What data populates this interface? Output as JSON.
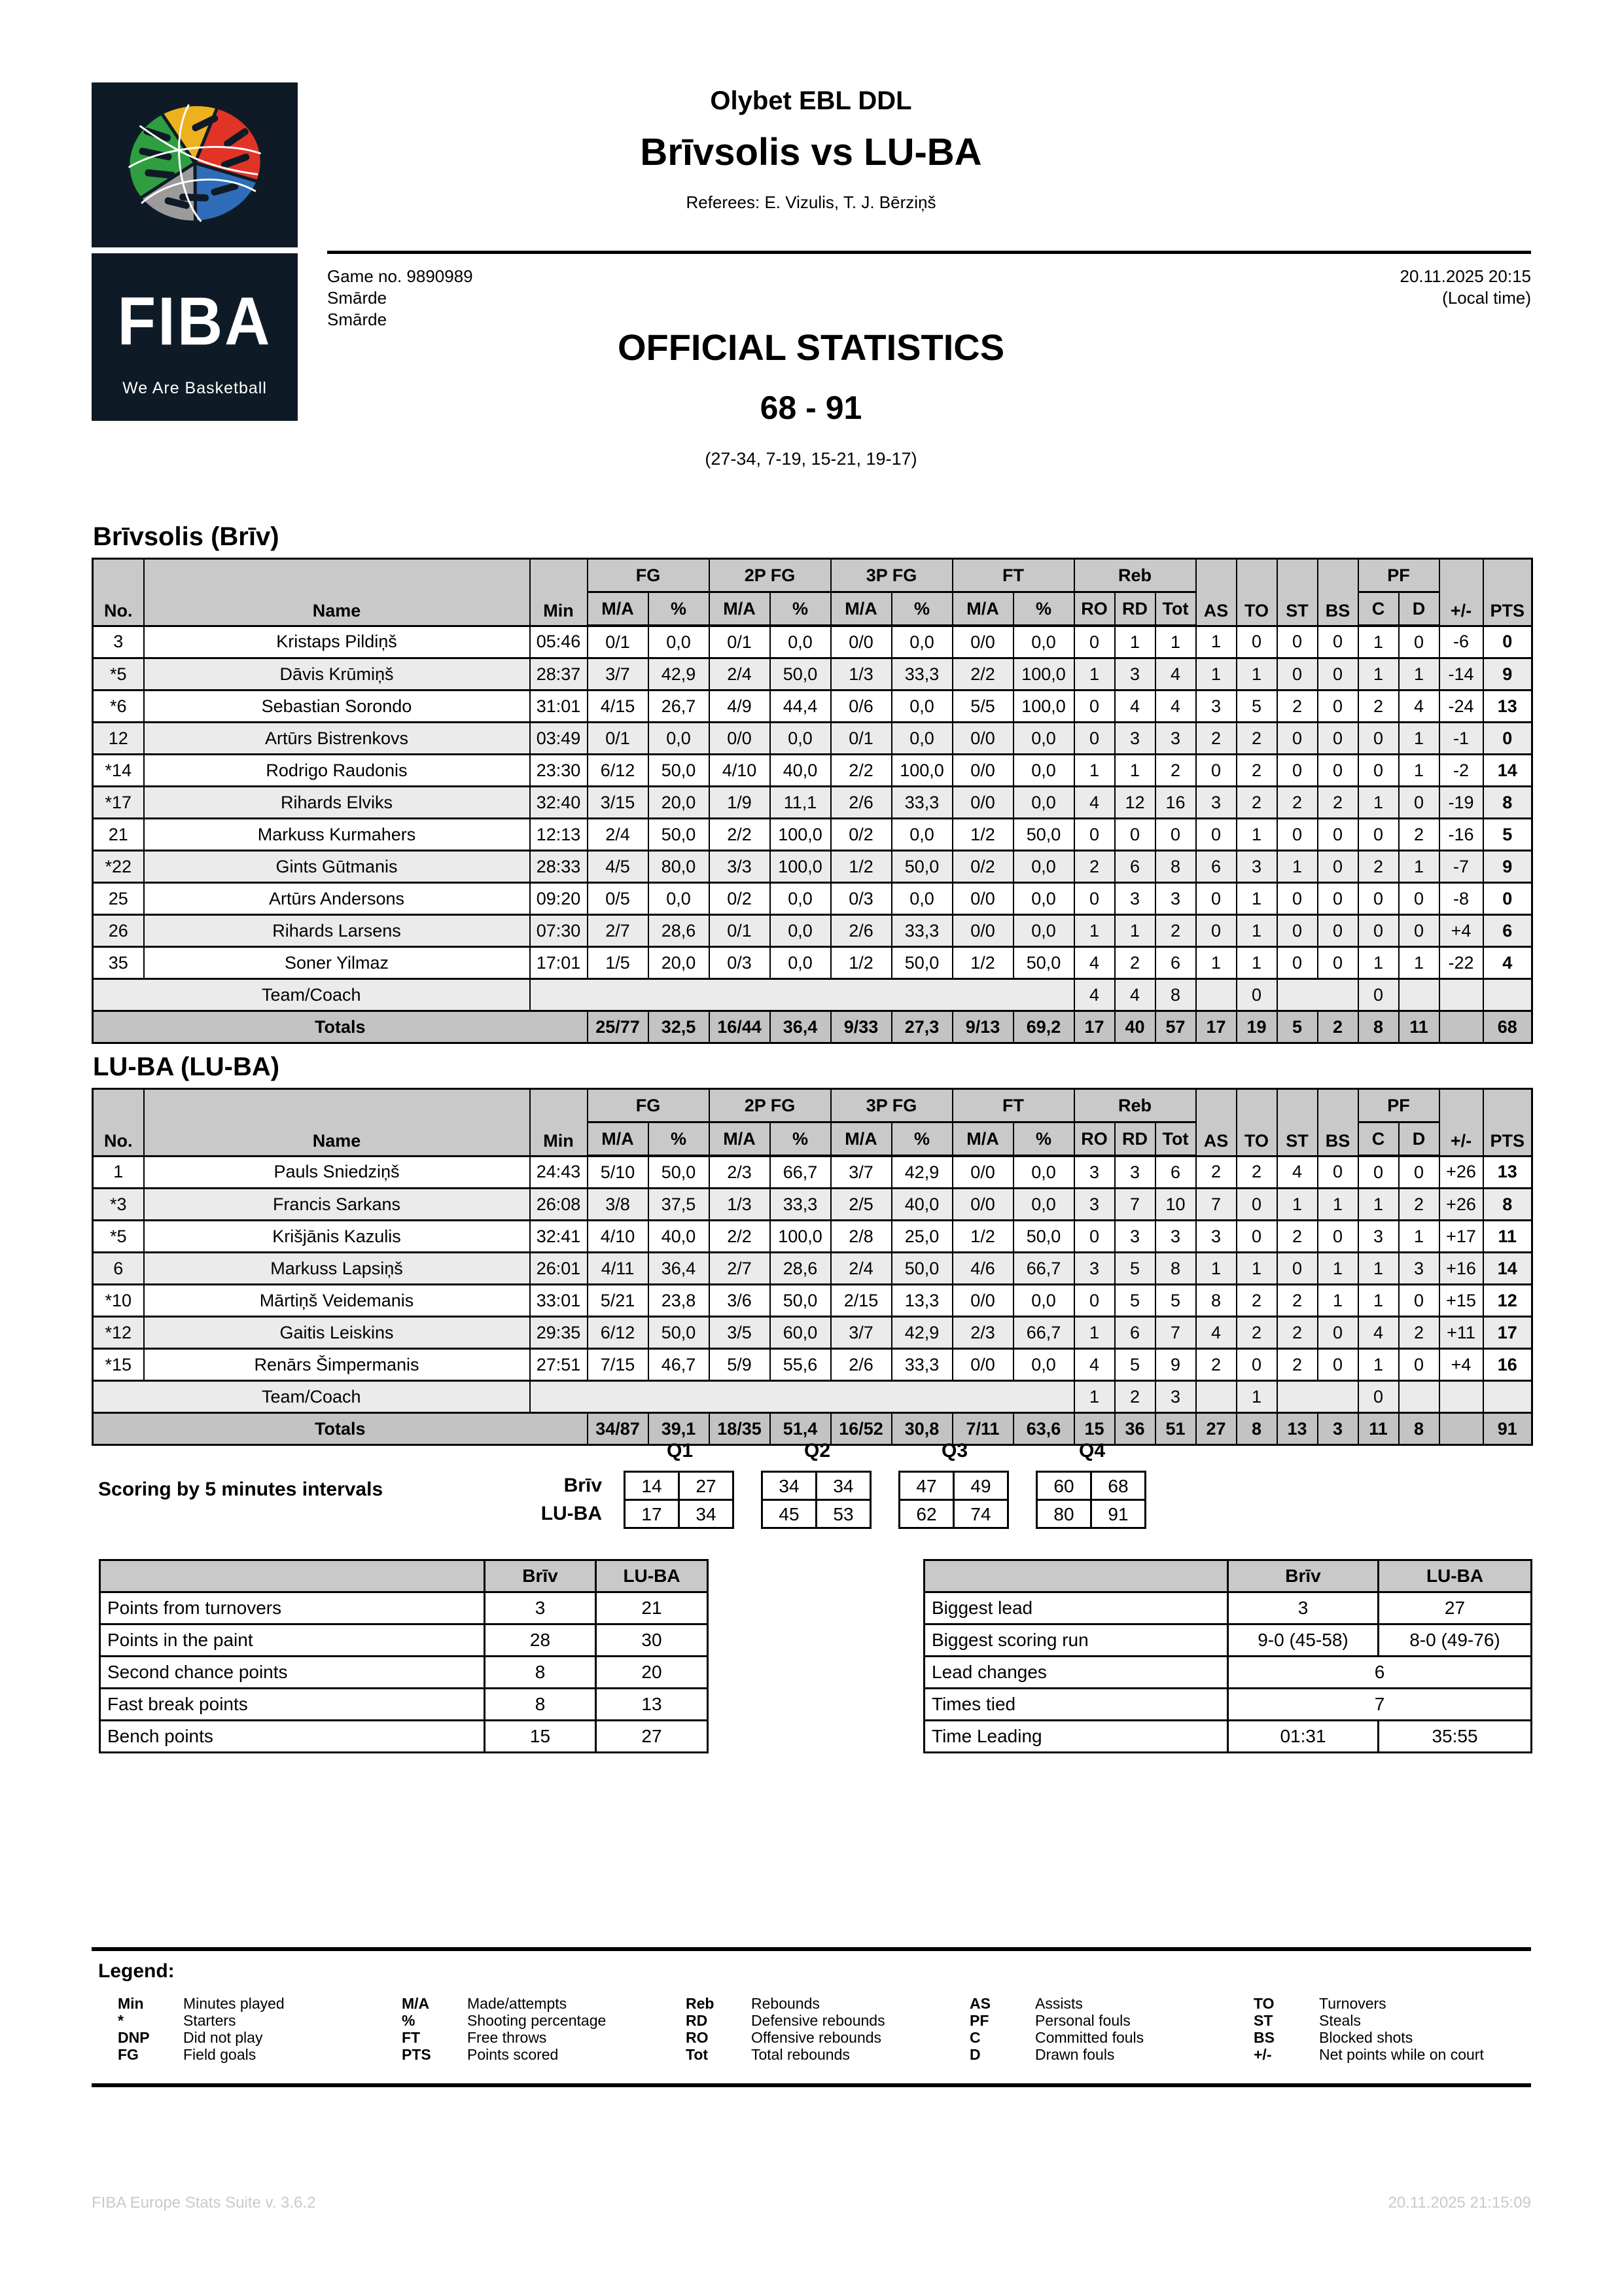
{
  "page": {
    "league": "Olybet EBL DDL",
    "matchup": "Brīvsolis vs LU-BA",
    "referees": "Referees: E. Vizulis, T. J. Bērziņš",
    "game_no": "Game no. 9890989",
    "venue_line1": "Smārde",
    "venue_line2": "Smārde",
    "datetime": "20.11.2025 20:15",
    "local_time_note": "(Local time)",
    "stats_title": "OFFICIAL STATISTICS",
    "final_score": "68 - 91",
    "quarter_scores": "(27-34, 7-19, 15-21, 19-17)"
  },
  "logo": {
    "name": "FIBA",
    "tagline": "We Are Basketball"
  },
  "columns": {
    "no": "No.",
    "name": "Name",
    "min": "Min",
    "fg": "FG",
    "fg2": "2P FG",
    "fg3": "3P FG",
    "ft": "FT",
    "reb": "Reb",
    "ma": "M/A",
    "pct": "%",
    "ro": "RO",
    "rd": "RD",
    "tot": "Tot",
    "as": "AS",
    "to": "TO",
    "st": "ST",
    "bs": "BS",
    "pf": "PF",
    "c": "C",
    "d": "D",
    "plusminus": "+/-",
    "pts": "PTS"
  },
  "box_scores": [
    {
      "team_title": "Brīvsolis (Brīv)",
      "players": [
        {
          "no": "3",
          "name": "Kristaps Pildiņš",
          "min": "05:46",
          "fg_ma": "0/1",
          "fg_pct": "0,0",
          "fg2_ma": "0/1",
          "fg2_pct": "0,0",
          "fg3_ma": "0/0",
          "fg3_pct": "0,0",
          "ft_ma": "0/0",
          "ft_pct": "0,0",
          "ro": "0",
          "rd": "1",
          "tot": "1",
          "as": "1",
          "to": "0",
          "st": "0",
          "bs": "0",
          "c": "1",
          "d": "0",
          "pm": "-6",
          "pts": "0"
        },
        {
          "no": "*5",
          "name": "Dāvis Krūmiņš",
          "min": "28:37",
          "fg_ma": "3/7",
          "fg_pct": "42,9",
          "fg2_ma": "2/4",
          "fg2_pct": "50,0",
          "fg3_ma": "1/3",
          "fg3_pct": "33,3",
          "ft_ma": "2/2",
          "ft_pct": "100,0",
          "ro": "1",
          "rd": "3",
          "tot": "4",
          "as": "1",
          "to": "1",
          "st": "0",
          "bs": "0",
          "c": "1",
          "d": "1",
          "pm": "-14",
          "pts": "9"
        },
        {
          "no": "*6",
          "name": "Sebastian Sorondo",
          "min": "31:01",
          "fg_ma": "4/15",
          "fg_pct": "26,7",
          "fg2_ma": "4/9",
          "fg2_pct": "44,4",
          "fg3_ma": "0/6",
          "fg3_pct": "0,0",
          "ft_ma": "5/5",
          "ft_pct": "100,0",
          "ro": "0",
          "rd": "4",
          "tot": "4",
          "as": "3",
          "to": "5",
          "st": "2",
          "bs": "0",
          "c": "2",
          "d": "4",
          "pm": "-24",
          "pts": "13"
        },
        {
          "no": "12",
          "name": "Artūrs Bistrenkovs",
          "min": "03:49",
          "fg_ma": "0/1",
          "fg_pct": "0,0",
          "fg2_ma": "0/0",
          "fg2_pct": "0,0",
          "fg3_ma": "0/1",
          "fg3_pct": "0,0",
          "ft_ma": "0/0",
          "ft_pct": "0,0",
          "ro": "0",
          "rd": "3",
          "tot": "3",
          "as": "2",
          "to": "2",
          "st": "0",
          "bs": "0",
          "c": "0",
          "d": "1",
          "pm": "-1",
          "pts": "0"
        },
        {
          "no": "*14",
          "name": "Rodrigo Raudonis",
          "min": "23:30",
          "fg_ma": "6/12",
          "fg_pct": "50,0",
          "fg2_ma": "4/10",
          "fg2_pct": "40,0",
          "fg3_ma": "2/2",
          "fg3_pct": "100,0",
          "ft_ma": "0/0",
          "ft_pct": "0,0",
          "ro": "1",
          "rd": "1",
          "tot": "2",
          "as": "0",
          "to": "2",
          "st": "0",
          "bs": "0",
          "c": "0",
          "d": "1",
          "pm": "-2",
          "pts": "14"
        },
        {
          "no": "*17",
          "name": "Rihards Elviks",
          "min": "32:40",
          "fg_ma": "3/15",
          "fg_pct": "20,0",
          "fg2_ma": "1/9",
          "fg2_pct": "11,1",
          "fg3_ma": "2/6",
          "fg3_pct": "33,3",
          "ft_ma": "0/0",
          "ft_pct": "0,0",
          "ro": "4",
          "rd": "12",
          "tot": "16",
          "as": "3",
          "to": "2",
          "st": "2",
          "bs": "2",
          "c": "1",
          "d": "0",
          "pm": "-19",
          "pts": "8"
        },
        {
          "no": "21",
          "name": "Markuss Kurmahers",
          "min": "12:13",
          "fg_ma": "2/4",
          "fg_pct": "50,0",
          "fg2_ma": "2/2",
          "fg2_pct": "100,0",
          "fg3_ma": "0/2",
          "fg3_pct": "0,0",
          "ft_ma": "1/2",
          "ft_pct": "50,0",
          "ro": "0",
          "rd": "0",
          "tot": "0",
          "as": "0",
          "to": "1",
          "st": "0",
          "bs": "0",
          "c": "0",
          "d": "2",
          "pm": "-16",
          "pts": "5"
        },
        {
          "no": "*22",
          "name": "Gints Gūtmanis",
          "min": "28:33",
          "fg_ma": "4/5",
          "fg_pct": "80,0",
          "fg2_ma": "3/3",
          "fg2_pct": "100,0",
          "fg3_ma": "1/2",
          "fg3_pct": "50,0",
          "ft_ma": "0/2",
          "ft_pct": "0,0",
          "ro": "2",
          "rd": "6",
          "tot": "8",
          "as": "6",
          "to": "3",
          "st": "1",
          "bs": "0",
          "c": "2",
          "d": "1",
          "pm": "-7",
          "pts": "9"
        },
        {
          "no": "25",
          "name": "Artūrs Andersons",
          "min": "09:20",
          "fg_ma": "0/5",
          "fg_pct": "0,0",
          "fg2_ma": "0/2",
          "fg2_pct": "0,0",
          "fg3_ma": "0/3",
          "fg3_pct": "0,0",
          "ft_ma": "0/0",
          "ft_pct": "0,0",
          "ro": "0",
          "rd": "3",
          "tot": "3",
          "as": "0",
          "to": "1",
          "st": "0",
          "bs": "0",
          "c": "0",
          "d": "0",
          "pm": "-8",
          "pts": "0"
        },
        {
          "no": "26",
          "name": "Rihards Larsens",
          "min": "07:30",
          "fg_ma": "2/7",
          "fg_pct": "28,6",
          "fg2_ma": "0/1",
          "fg2_pct": "0,0",
          "fg3_ma": "2/6",
          "fg3_pct": "33,3",
          "ft_ma": "0/0",
          "ft_pct": "0,0",
          "ro": "1",
          "rd": "1",
          "tot": "2",
          "as": "0",
          "to": "1",
          "st": "0",
          "bs": "0",
          "c": "0",
          "d": "0",
          "pm": "+4",
          "pts": "6"
        },
        {
          "no": "35",
          "name": "Soner Yilmaz",
          "min": "17:01",
          "fg_ma": "1/5",
          "fg_pct": "20,0",
          "fg2_ma": "0/3",
          "fg2_pct": "0,0",
          "fg3_ma": "1/2",
          "fg3_pct": "50,0",
          "ft_ma": "1/2",
          "ft_pct": "50,0",
          "ro": "4",
          "rd": "2",
          "tot": "6",
          "as": "1",
          "to": "1",
          "st": "0",
          "bs": "0",
          "c": "1",
          "d": "1",
          "pm": "-22",
          "pts": "4"
        }
      ],
      "team_coach": {
        "label": "Team/Coach",
        "ro": "4",
        "rd": "4",
        "tot": "8",
        "to": "0",
        "c": "0"
      },
      "totals": {
        "label": "Totals",
        "fg_ma": "25/77",
        "fg_pct": "32,5",
        "fg2_ma": "16/44",
        "fg2_pct": "36,4",
        "fg3_ma": "9/33",
        "fg3_pct": "27,3",
        "ft_ma": "9/13",
        "ft_pct": "69,2",
        "ro": "17",
        "rd": "40",
        "tot": "57",
        "as": "17",
        "to": "19",
        "st": "5",
        "bs": "2",
        "c": "8",
        "d": "11",
        "pm": "",
        "pts": "68"
      }
    },
    {
      "team_title": "LU-BA (LU-BA)",
      "players": [
        {
          "no": "1",
          "name": "Pauls Sniedziņš",
          "min": "24:43",
          "fg_ma": "5/10",
          "fg_pct": "50,0",
          "fg2_ma": "2/3",
          "fg2_pct": "66,7",
          "fg3_ma": "3/7",
          "fg3_pct": "42,9",
          "ft_ma": "0/0",
          "ft_pct": "0,0",
          "ro": "3",
          "rd": "3",
          "tot": "6",
          "as": "2",
          "to": "2",
          "st": "4",
          "bs": "0",
          "c": "0",
          "d": "0",
          "pm": "+26",
          "pts": "13"
        },
        {
          "no": "*3",
          "name": "Francis Sarkans",
          "min": "26:08",
          "fg_ma": "3/8",
          "fg_pct": "37,5",
          "fg2_ma": "1/3",
          "fg2_pct": "33,3",
          "fg3_ma": "2/5",
          "fg3_pct": "40,0",
          "ft_ma": "0/0",
          "ft_pct": "0,0",
          "ro": "3",
          "rd": "7",
          "tot": "10",
          "as": "7",
          "to": "0",
          "st": "1",
          "bs": "1",
          "c": "1",
          "d": "2",
          "pm": "+26",
          "pts": "8"
        },
        {
          "no": "*5",
          "name": "Krišjānis Kazulis",
          "min": "32:41",
          "fg_ma": "4/10",
          "fg_pct": "40,0",
          "fg2_ma": "2/2",
          "fg2_pct": "100,0",
          "fg3_ma": "2/8",
          "fg3_pct": "25,0",
          "ft_ma": "1/2",
          "ft_pct": "50,0",
          "ro": "0",
          "rd": "3",
          "tot": "3",
          "as": "3",
          "to": "0",
          "st": "2",
          "bs": "0",
          "c": "3",
          "d": "1",
          "pm": "+17",
          "pts": "11"
        },
        {
          "no": "6",
          "name": "Markuss Lapsiņš",
          "min": "26:01",
          "fg_ma": "4/11",
          "fg_pct": "36,4",
          "fg2_ma": "2/7",
          "fg2_pct": "28,6",
          "fg3_ma": "2/4",
          "fg3_pct": "50,0",
          "ft_ma": "4/6",
          "ft_pct": "66,7",
          "ro": "3",
          "rd": "5",
          "tot": "8",
          "as": "1",
          "to": "1",
          "st": "0",
          "bs": "1",
          "c": "1",
          "d": "3",
          "pm": "+16",
          "pts": "14"
        },
        {
          "no": "*10",
          "name": "Mārtiņš Veidemanis",
          "min": "33:01",
          "fg_ma": "5/21",
          "fg_pct": "23,8",
          "fg2_ma": "3/6",
          "fg2_pct": "50,0",
          "fg3_ma": "2/15",
          "fg3_pct": "13,3",
          "ft_ma": "0/0",
          "ft_pct": "0,0",
          "ro": "0",
          "rd": "5",
          "tot": "5",
          "as": "8",
          "to": "2",
          "st": "2",
          "bs": "1",
          "c": "1",
          "d": "0",
          "pm": "+15",
          "pts": "12"
        },
        {
          "no": "*12",
          "name": "Gaitis Leiskins",
          "min": "29:35",
          "fg_ma": "6/12",
          "fg_pct": "50,0",
          "fg2_ma": "3/5",
          "fg2_pct": "60,0",
          "fg3_ma": "3/7",
          "fg3_pct": "42,9",
          "ft_ma": "2/3",
          "ft_pct": "66,7",
          "ro": "1",
          "rd": "6",
          "tot": "7",
          "as": "4",
          "to": "2",
          "st": "2",
          "bs": "0",
          "c": "4",
          "d": "2",
          "pm": "+11",
          "pts": "17"
        },
        {
          "no": "*15",
          "name": "Renārs Šimpermanis",
          "min": "27:51",
          "fg_ma": "7/15",
          "fg_pct": "46,7",
          "fg2_ma": "5/9",
          "fg2_pct": "55,6",
          "fg3_ma": "2/6",
          "fg3_pct": "33,3",
          "ft_ma": "0/0",
          "ft_pct": "0,0",
          "ro": "4",
          "rd": "5",
          "tot": "9",
          "as": "2",
          "to": "0",
          "st": "2",
          "bs": "0",
          "c": "1",
          "d": "0",
          "pm": "+4",
          "pts": "16"
        }
      ],
      "team_coach": {
        "label": "Team/Coach",
        "ro": "1",
        "rd": "2",
        "tot": "3",
        "to": "1",
        "c": "0"
      },
      "totals": {
        "label": "Totals",
        "fg_ma": "34/87",
        "fg_pct": "39,1",
        "fg2_ma": "18/35",
        "fg2_pct": "51,4",
        "fg3_ma": "16/52",
        "fg3_pct": "30,8",
        "ft_ma": "7/11",
        "ft_pct": "63,6",
        "ro": "15",
        "rd": "36",
        "tot": "51",
        "as": "27",
        "to": "8",
        "st": "13",
        "bs": "3",
        "c": "11",
        "d": "8",
        "pm": "",
        "pts": "91"
      }
    }
  ],
  "scoring_intervals": {
    "label": "Scoring by 5 minutes intervals",
    "quarter_labels": [
      "Q1",
      "Q2",
      "Q3",
      "Q4"
    ],
    "rows": [
      {
        "team": "Brīv",
        "values": [
          [
            "14",
            "27"
          ],
          [
            "34",
            "34"
          ],
          [
            "47",
            "49"
          ],
          [
            "60",
            "68"
          ]
        ]
      },
      {
        "team": "LU-BA",
        "values": [
          [
            "17",
            "34"
          ],
          [
            "45",
            "53"
          ],
          [
            "62",
            "74"
          ],
          [
            "80",
            "91"
          ]
        ]
      }
    ]
  },
  "team_stats_left": {
    "headers": [
      "",
      "Brīv",
      "LU-BA"
    ],
    "rows": [
      {
        "label": "Points from turnovers",
        "briv": "3",
        "luba": "21"
      },
      {
        "label": "Points in the paint",
        "briv": "28",
        "luba": "30"
      },
      {
        "label": "Second chance points",
        "briv": "8",
        "luba": "20"
      },
      {
        "label": "Fast break points",
        "briv": "8",
        "luba": "13"
      },
      {
        "label": "Bench points",
        "briv": "15",
        "luba": "27"
      }
    ]
  },
  "team_stats_right": {
    "headers": [
      "",
      "Brīv",
      "LU-BA"
    ],
    "rows": [
      {
        "label": "Biggest lead",
        "briv": "3",
        "luba": "27"
      },
      {
        "label": "Biggest scoring run",
        "briv": "9-0 (45-58)",
        "luba": "8-0 (49-76)"
      },
      {
        "label": "Lead changes",
        "merged": "6"
      },
      {
        "label": "Times tied",
        "merged": "7"
      },
      {
        "label": "Time Leading",
        "briv": "01:31",
        "luba": "35:55"
      }
    ]
  },
  "legend": {
    "title": "Legend:",
    "columns": [
      [
        {
          "abbr": "Min",
          "desc": "Minutes played"
        },
        {
          "abbr": "*",
          "desc": "Starters"
        },
        {
          "abbr": "DNP",
          "desc": "Did not play"
        },
        {
          "abbr": "FG",
          "desc": "Field goals"
        }
      ],
      [
        {
          "abbr": "M/A",
          "desc": "Made/attempts"
        },
        {
          "abbr": "%",
          "desc": "Shooting percentage"
        },
        {
          "abbr": "FT",
          "desc": "Free throws"
        },
        {
          "abbr": "PTS",
          "desc": "Points scored"
        }
      ],
      [
        {
          "abbr": "Reb",
          "desc": "Rebounds"
        },
        {
          "abbr": "RD",
          "desc": "Defensive rebounds"
        },
        {
          "abbr": "RO",
          "desc": "Offensive rebounds"
        },
        {
          "abbr": "Tot",
          "desc": "Total rebounds"
        }
      ],
      [
        {
          "abbr": "AS",
          "desc": "Assists"
        },
        {
          "abbr": "PF",
          "desc": "Personal fouls"
        },
        {
          "abbr": "C",
          "desc": "Committed fouls"
        },
        {
          "abbr": "D",
          "desc": "Drawn fouls"
        }
      ],
      [
        {
          "abbr": "TO",
          "desc": "Turnovers"
        },
        {
          "abbr": "ST",
          "desc": "Steals"
        },
        {
          "abbr": "BS",
          "desc": "Blocked shots"
        },
        {
          "abbr": "+/-",
          "desc": "Net points while on court"
        }
      ]
    ]
  },
  "footer": {
    "left": "FIBA Europe Stats Suite v. 3.6.2",
    "right": "20.11.2025 21:15:09"
  }
}
